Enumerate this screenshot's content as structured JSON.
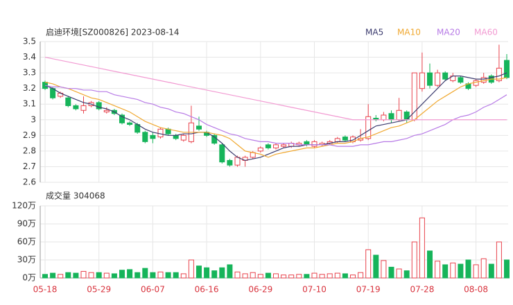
{
  "chart_data": [
    {
      "type": "candlestick",
      "title": "启迪环境[SZ000826] 2023-08-14",
      "categories": [
        "05-18",
        null,
        null,
        null,
        null,
        null,
        null,
        "05-29",
        null,
        null,
        null,
        null,
        null,
        null,
        "06-07",
        null,
        null,
        null,
        null,
        null,
        null,
        "06-16",
        null,
        null,
        null,
        null,
        null,
        null,
        "06-29",
        null,
        null,
        null,
        null,
        null,
        null,
        "07-10",
        null,
        null,
        null,
        null,
        null,
        null,
        "07-19",
        null,
        null,
        null,
        null,
        null,
        null,
        "07-28",
        null,
        null,
        null,
        null,
        null,
        null,
        "08-08",
        null,
        null,
        null,
        null
      ],
      "open": [
        3.24,
        3.2,
        3.15,
        3.14,
        3.09,
        3.06,
        3.09,
        3.11,
        3.05,
        3.06,
        3.03,
        2.98,
        2.97,
        2.92,
        2.9,
        2.89,
        2.94,
        2.9,
        2.87,
        2.86,
        2.96,
        2.92,
        2.9,
        2.84,
        2.74,
        2.71,
        2.74,
        2.76,
        2.8,
        2.84,
        2.82,
        2.83,
        2.83,
        2.84,
        2.86,
        2.83,
        2.84,
        2.85,
        2.86,
        2.89,
        2.86,
        2.87,
        2.88,
        3.01,
        3.0,
        3.04,
        3.0,
        3.05,
        3.0,
        3.2,
        3.3,
        3.22,
        3.3,
        3.25,
        3.27,
        3.23,
        3.22,
        3.24,
        3.28,
        3.25,
        3.38
      ],
      "close": [
        3.2,
        3.14,
        3.17,
        3.09,
        3.07,
        3.09,
        3.11,
        3.07,
        3.06,
        3.04,
        2.98,
        2.97,
        2.92,
        2.86,
        2.88,
        2.94,
        2.91,
        2.88,
        2.9,
        2.98,
        2.94,
        2.9,
        2.85,
        2.73,
        2.71,
        2.76,
        2.76,
        2.79,
        2.82,
        2.82,
        2.84,
        2.84,
        2.85,
        2.85,
        2.84,
        2.86,
        2.85,
        2.86,
        2.88,
        2.87,
        2.89,
        2.88,
        3.02,
        3.0,
        3.03,
        3.0,
        3.06,
        3.0,
        3.3,
        3.3,
        3.22,
        3.3,
        3.26,
        3.28,
        3.24,
        3.2,
        3.25,
        3.27,
        3.24,
        3.33,
        3.27
      ],
      "high": [
        3.25,
        3.21,
        3.18,
        3.15,
        3.1,
        3.15,
        3.12,
        3.12,
        3.08,
        3.07,
        3.04,
        2.99,
        2.98,
        2.93,
        2.92,
        2.95,
        2.95,
        2.91,
        2.91,
        3.09,
        3.02,
        2.93,
        2.91,
        2.85,
        2.75,
        2.77,
        2.77,
        2.8,
        2.83,
        2.85,
        2.85,
        2.85,
        2.86,
        2.86,
        2.87,
        2.87,
        2.86,
        2.87,
        2.89,
        2.9,
        2.9,
        2.94,
        3.1,
        3.03,
        3.05,
        3.06,
        3.14,
        3.06,
        3.3,
        3.43,
        3.36,
        3.32,
        3.31,
        3.3,
        3.28,
        3.24,
        3.26,
        3.3,
        3.29,
        3.48,
        3.42
      ],
      "low": [
        3.19,
        3.13,
        3.14,
        3.08,
        3.06,
        3.04,
        3.08,
        3.06,
        3.04,
        3.03,
        2.97,
        2.96,
        2.91,
        2.85,
        2.85,
        2.88,
        2.9,
        2.87,
        2.86,
        2.85,
        2.93,
        2.89,
        2.84,
        2.72,
        2.7,
        2.7,
        2.7,
        2.75,
        2.79,
        2.81,
        2.81,
        2.82,
        2.82,
        2.83,
        2.83,
        2.82,
        2.83,
        2.84,
        2.85,
        2.86,
        2.85,
        2.86,
        2.87,
        2.99,
        2.99,
        2.98,
        2.99,
        2.98,
        2.99,
        3.18,
        3.2,
        3.21,
        3.25,
        3.24,
        3.23,
        3.19,
        3.21,
        3.23,
        3.23,
        3.24,
        3.26
      ],
      "up_color": "#e8414b",
      "down_color": "#16b45a",
      "series": [
        {
          "name": "MA5",
          "color": "#3b3b6e",
          "values": [
            3.22,
            3.2,
            3.17,
            3.15,
            3.13,
            3.11,
            3.1,
            3.08,
            3.07,
            3.05,
            3.02,
            3.0,
            2.97,
            2.94,
            2.92,
            2.91,
            2.9,
            2.9,
            2.91,
            2.91,
            2.92,
            2.92,
            2.89,
            2.85,
            2.8,
            2.76,
            2.74,
            2.75,
            2.76,
            2.78,
            2.8,
            2.82,
            2.83,
            2.83,
            2.84,
            2.84,
            2.84,
            2.85,
            2.86,
            2.86,
            2.87,
            2.9,
            2.93,
            2.96,
            2.97,
            2.98,
            2.99,
            3.0,
            3.05,
            3.1,
            3.15,
            3.2,
            3.25,
            3.28,
            3.28,
            3.27,
            3.26,
            3.26,
            3.27,
            3.28,
            3.3
          ]
        },
        {
          "name": "MA10",
          "color": "#f0a830",
          "values": [
            3.24,
            3.23,
            3.21,
            3.2,
            3.18,
            3.16,
            3.14,
            3.13,
            3.11,
            3.09,
            3.07,
            3.05,
            3.02,
            2.99,
            2.97,
            2.95,
            2.94,
            2.93,
            2.92,
            2.92,
            2.92,
            2.92,
            2.91,
            2.9,
            2.88,
            2.84,
            2.8,
            2.79,
            2.78,
            2.76,
            2.78,
            2.79,
            2.8,
            2.81,
            2.82,
            2.82,
            2.83,
            2.84,
            2.85,
            2.85,
            2.86,
            2.88,
            2.89,
            2.91,
            2.93,
            2.95,
            2.96,
            2.98,
            3.0,
            3.04,
            3.08,
            3.12,
            3.15,
            3.18,
            3.21,
            3.23,
            3.24,
            3.25,
            3.26,
            3.26,
            3.27
          ]
        },
        {
          "name": "MA20",
          "color": "#b77ae6",
          "values": [
            3.22,
            3.21,
            3.21,
            3.2,
            3.2,
            3.19,
            3.19,
            3.18,
            3.18,
            3.16,
            3.15,
            3.14,
            3.13,
            3.11,
            3.1,
            3.08,
            3.07,
            3.05,
            3.04,
            3.02,
            3.0,
            2.97,
            2.95,
            2.93,
            2.91,
            2.9,
            2.88,
            2.87,
            2.86,
            2.86,
            2.85,
            2.85,
            2.85,
            2.84,
            2.84,
            2.84,
            2.84,
            2.84,
            2.83,
            2.83,
            2.83,
            2.84,
            2.84,
            2.85,
            2.86,
            2.86,
            2.87,
            2.88,
            2.9,
            2.91,
            2.93,
            2.95,
            2.97,
            3.0,
            3.02,
            3.03,
            3.05,
            3.08,
            3.1,
            3.13,
            3.16
          ]
        },
        {
          "name": "MA60",
          "color": "#f29ad2",
          "values": [
            3.4,
            3.39,
            3.38,
            3.37,
            3.36,
            3.35,
            3.34,
            3.33,
            3.32,
            3.31,
            3.3,
            3.29,
            3.28,
            3.27,
            3.26,
            3.25,
            3.24,
            3.23,
            3.22,
            3.21,
            3.2,
            3.19,
            3.18,
            3.17,
            3.16,
            3.15,
            3.14,
            3.13,
            3.12,
            3.11,
            3.1,
            3.09,
            3.08,
            3.07,
            3.06,
            3.05,
            3.04,
            3.03,
            3.02,
            3.01,
            3.0,
            3.0,
            3.0,
            3.0,
            3.0,
            3.0,
            3.0,
            3.0,
            3.0,
            3.0,
            3.0,
            3.0,
            3.0,
            3.0,
            3.0,
            3.0,
            3.0,
            3.0,
            3.0,
            3.0,
            3.0
          ]
        }
      ],
      "ylim": [
        2.6,
        3.5
      ],
      "yticks": [
        3.5,
        3.4,
        3.3,
        3.2,
        3.1,
        3,
        2.9,
        2.8,
        2.7,
        2.6
      ],
      "grid": true
    },
    {
      "type": "volume",
      "title": "成交量 304068",
      "values": [
        6,
        8,
        6,
        9,
        8,
        11,
        9,
        9,
        8,
        7,
        13,
        14,
        9,
        16,
        9,
        10,
        9,
        9,
        7,
        30,
        20,
        17,
        12,
        17,
        22,
        10,
        7,
        9,
        6,
        8,
        7,
        5,
        5,
        6,
        6,
        8,
        6,
        7,
        8,
        7,
        5,
        9,
        47,
        38,
        29,
        18,
        15,
        12,
        60,
        100,
        45,
        28,
        22,
        25,
        23,
        30,
        22,
        32,
        23,
        60,
        30
      ],
      "up_color": "#e8414b",
      "down_color": "#16b45a",
      "ylim": [
        0,
        120
      ],
      "yticks": [
        {
          "value": 120,
          "label": "120万"
        },
        {
          "value": 90,
          "label": "90万"
        },
        {
          "value": 60,
          "label": "60万"
        },
        {
          "value": 30,
          "label": "30万"
        },
        {
          "value": 0,
          "label": "0万"
        }
      ],
      "grid": true
    }
  ]
}
